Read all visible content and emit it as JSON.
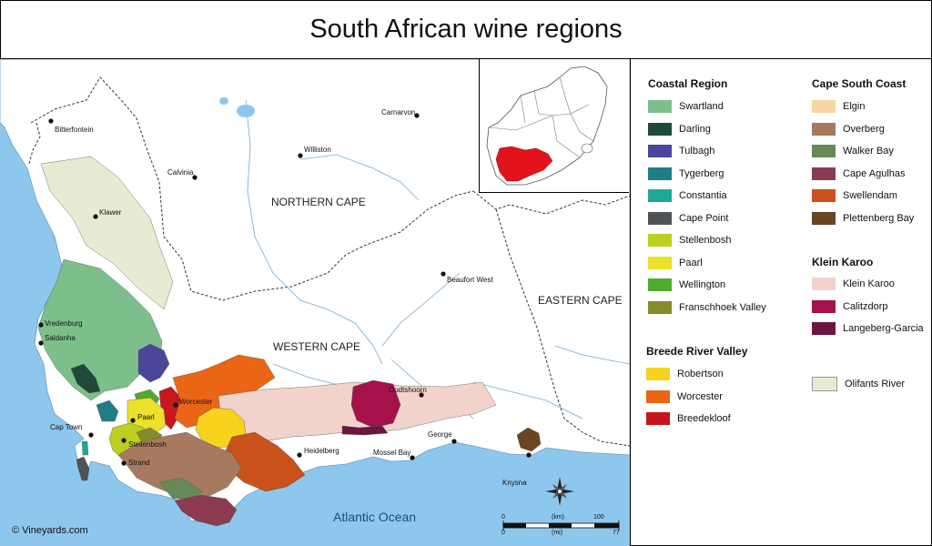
{
  "title": "South African wine regions",
  "copyright": "© Vineyards.com",
  "ocean": "Atlantic Ocean",
  "provinces": {
    "northern_cape": "NORTHERN CAPE",
    "western_cape": "WESTERN CAPE",
    "eastern_cape": "EASTERN CAPE"
  },
  "towns": {
    "bitterfontein": "Bitterfontein",
    "carnarvon": "Carnarvon",
    "williston": "Williston",
    "calvinia": "Calvinia",
    "klawer": "Klawer",
    "beaufort_west": "Beaufort West",
    "vredenburg": "Vredenburg",
    "saldanha": "Saldanha",
    "paarl": "Paarl",
    "worcester": "Worcester",
    "oudtshoorn": "Oudtshoorn",
    "cape_town": "Cap Town",
    "stellenbosh": "Stellenbosh",
    "strand": "Strand",
    "george": "George",
    "heidelberg": "Heidelberg",
    "mossel_bay": "Mossel Bay",
    "knysna": "Knysna"
  },
  "scale": {
    "km_unit": "(km)",
    "mi_unit": "(mi)",
    "zero_km": "0",
    "zero_mi": "0",
    "max_km": "100",
    "max_mi": "77"
  },
  "legend": {
    "coastal": {
      "heading": "Coastal Region",
      "items": [
        {
          "label": "Swartland",
          "color": "#7dbf8a"
        },
        {
          "label": "Darling",
          "color": "#1f4a3a"
        },
        {
          "label": "Tulbagh",
          "color": "#4a469a"
        },
        {
          "label": "Tygerberg",
          "color": "#1f7d87"
        },
        {
          "label": "Constantia",
          "color": "#1fa898"
        },
        {
          "label": "Cape Point",
          "color": "#4f5256"
        },
        {
          "label": "Stellenbosh",
          "color": "#bcd11f"
        },
        {
          "label": "Paarl",
          "color": "#ece02a"
        },
        {
          "label": "Wellington",
          "color": "#4fac2e"
        },
        {
          "label": "Franschhoek Valley",
          "color": "#858c29"
        }
      ]
    },
    "breede": {
      "heading": "Breede River Valley",
      "items": [
        {
          "label": "Robertson",
          "color": "#f7d21f"
        },
        {
          "label": "Worcester",
          "color": "#ea6516"
        },
        {
          "label": "Breedekloof",
          "color": "#c8161d"
        }
      ]
    },
    "south_coast": {
      "heading": "Cape South Coast",
      "items": [
        {
          "label": "Elgin",
          "color": "#f6d5a4"
        },
        {
          "label": "Overberg",
          "color": "#a77a5f"
        },
        {
          "label": "Walker Bay",
          "color": "#658a57"
        },
        {
          "label": "Cape Agulhas",
          "color": "#8c3a52"
        },
        {
          "label": "Swellendam",
          "color": "#c9511c"
        },
        {
          "label": "Plettenberg Bay",
          "color": "#6b4422"
        }
      ]
    },
    "klein_karoo": {
      "heading": "Klein Karoo",
      "items": [
        {
          "label": "Klein Karoo",
          "color": "#f2d3cc"
        },
        {
          "label": "Calitzdorp",
          "color": "#a5114a"
        },
        {
          "label": "Langeberg-Garcia",
          "color": "#6a1640"
        }
      ]
    },
    "olifants": {
      "label": "Olifants River",
      "color": "#e6ecd2"
    }
  },
  "colors": {
    "ocean": "#8ec7ee",
    "land": "#ffffff",
    "inset_highlight": "#e3131b",
    "river": "#7aa7cf"
  }
}
